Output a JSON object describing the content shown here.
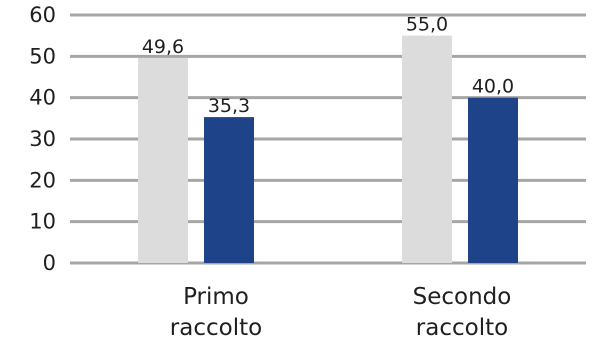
{
  "chart_data": {
    "type": "bar",
    "categories": [
      [
        "Primo",
        "raccolto"
      ],
      [
        "Secondo",
        "raccolto"
      ]
    ],
    "series": [
      {
        "values": [
          49.6,
          55.0
        ],
        "labels": [
          "49,6",
          "55,0"
        ],
        "color": "#dcdcdc"
      },
      {
        "values": [
          35.3,
          40.0
        ],
        "labels": [
          "35,3",
          "40,0"
        ],
        "color": "#1e4388"
      }
    ],
    "ylim": [
      0,
      60
    ],
    "yticks": [
      0,
      10,
      20,
      30,
      40,
      50,
      60
    ],
    "grid": true,
    "gridColor": "#a6a6a6",
    "title": "",
    "xlabel": "",
    "ylabel": ""
  }
}
